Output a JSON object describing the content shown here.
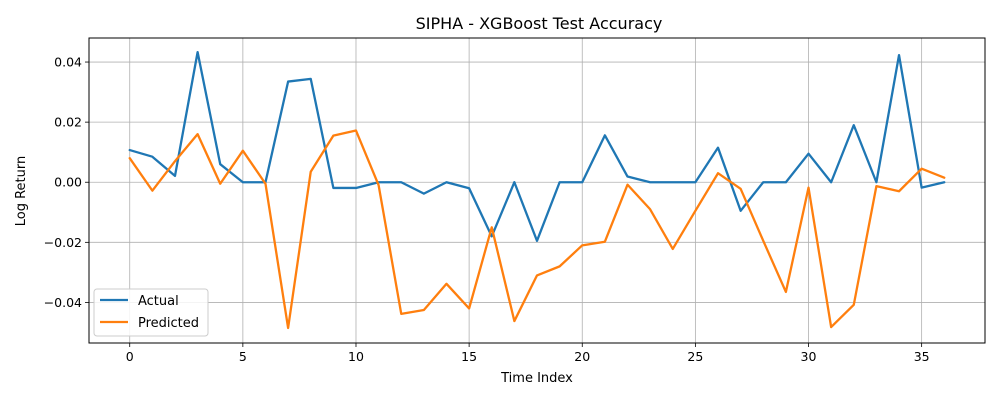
{
  "chart_data": {
    "type": "line",
    "title": "SIPHA - XGBoost Test Accuracy",
    "xlabel": "Time Index",
    "ylabel": "Log Return",
    "xlim": [
      -1.8,
      37.8
    ],
    "ylim": [
      -0.0535,
      0.048
    ],
    "xticks": [
      0,
      5,
      10,
      15,
      20,
      25,
      30,
      35
    ],
    "yticks": [
      -0.04,
      -0.02,
      0.0,
      0.02,
      0.04
    ],
    "xtick_labels": [
      "0",
      "5",
      "10",
      "15",
      "20",
      "25",
      "30",
      "35"
    ],
    "ytick_labels": [
      "−0.04",
      "−0.02",
      "0.00",
      "0.02",
      "0.04"
    ],
    "grid": true,
    "legend_position": "lower-left",
    "x": [
      0,
      1,
      2,
      3,
      4,
      5,
      6,
      7,
      8,
      9,
      10,
      11,
      12,
      13,
      14,
      15,
      16,
      17,
      18,
      19,
      20,
      21,
      22,
      23,
      24,
      25,
      26,
      27,
      28,
      29,
      30,
      31,
      32,
      33,
      34,
      35,
      36
    ],
    "series": [
      {
        "name": "Actual",
        "color": "#1f77b4",
        "values": [
          0.0107,
          0.0085,
          0.0021,
          0.0433,
          0.006,
          0.0,
          0.0,
          0.0335,
          0.0344,
          -0.0019,
          -0.0019,
          0.0,
          0.0,
          -0.0038,
          0.0,
          -0.002,
          -0.018,
          0.0,
          -0.0195,
          0.0,
          0.0,
          0.0156,
          0.0019,
          0.0,
          0.0,
          0.0,
          0.0115,
          -0.0095,
          0.0,
          0.0,
          0.0095,
          0.0,
          0.019,
          0.0,
          0.0423,
          -0.0018,
          0.0
        ]
      },
      {
        "name": "Predicted",
        "color": "#ff7f0e",
        "values": [
          0.008,
          -0.0028,
          0.007,
          0.016,
          -0.0005,
          0.0105,
          -0.0005,
          -0.0485,
          0.0035,
          0.0155,
          0.0172,
          -0.001,
          -0.0438,
          -0.0425,
          -0.0338,
          -0.042,
          -0.015,
          -0.0462,
          -0.031,
          -0.028,
          -0.021,
          -0.0198,
          -0.0008,
          -0.009,
          -0.0222,
          -0.0095,
          0.003,
          -0.0022,
          -0.0195,
          -0.0365,
          -0.0018,
          -0.0482,
          -0.0408,
          -0.0013,
          -0.003,
          0.0045,
          0.0015
        ]
      }
    ]
  }
}
